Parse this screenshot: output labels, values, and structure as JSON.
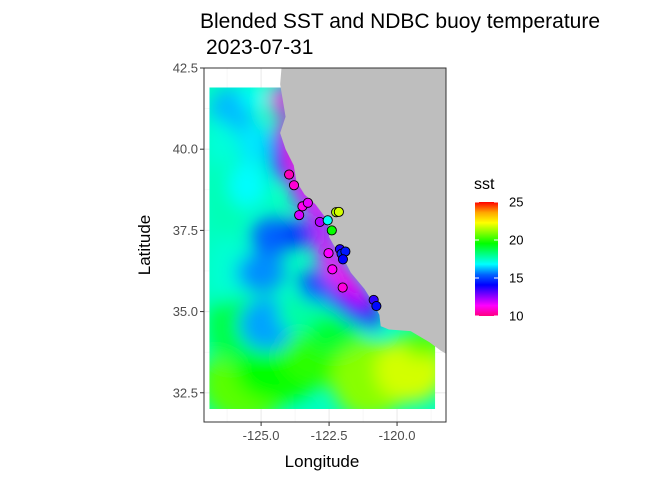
{
  "chart_data": {
    "type": "heatmap",
    "title": "Blended SST and NDBC buoy temperature",
    "subtitle": "2023-07-31",
    "xlabel": "Longitude",
    "ylabel": "Latitude",
    "xlim": [
      -127.1,
      -118.2
    ],
    "ylim": [
      31.6,
      42.5
    ],
    "x_ticks": [
      -125.0,
      -122.5,
      -120.0
    ],
    "x_tick_labels": [
      "-125.0",
      "-122.5",
      "-120.0"
    ],
    "y_ticks": [
      32.5,
      35.0,
      37.5,
      40.0,
      42.5
    ],
    "y_tick_labels": [
      "32.5",
      "35.0",
      "37.5",
      "40.0",
      "42.5"
    ],
    "grid": true,
    "panel_border": true,
    "land_color": "#bebebe",
    "legend": {
      "title": "sst",
      "position": "right",
      "range": [
        10,
        25
      ],
      "ticks": [
        10,
        15,
        20,
        25
      ],
      "tick_labels": [
        "10",
        "15",
        "20",
        "25"
      ],
      "colors": [
        "#ff0080",
        "#ff00ff",
        "#8000ff",
        "#0000ff",
        "#0066ff",
        "#00ffff",
        "#00ff80",
        "#00ff00",
        "#80ff00",
        "#ffff00",
        "#ffa500",
        "#ff0000"
      ]
    },
    "sst_field_extent": {
      "lon": [
        -126.9,
        -118.6
      ],
      "lat": [
        32.0,
        41.9
      ]
    },
    "coastline": [
      [
        -124.25,
        42.5
      ],
      [
        -124.3,
        42.0
      ],
      [
        -124.2,
        41.5
      ],
      [
        -124.1,
        41.0
      ],
      [
        -124.3,
        40.5
      ],
      [
        -124.1,
        40.0
      ],
      [
        -123.8,
        39.5
      ],
      [
        -123.7,
        39.0
      ],
      [
        -123.4,
        38.6
      ],
      [
        -123.0,
        38.3
      ],
      [
        -122.55,
        37.8
      ],
      [
        -122.5,
        37.3
      ],
      [
        -122.3,
        37.0
      ],
      [
        -121.9,
        36.9
      ],
      [
        -121.95,
        36.6
      ],
      [
        -121.7,
        36.2
      ],
      [
        -121.2,
        35.7
      ],
      [
        -120.9,
        35.3
      ],
      [
        -120.65,
        34.9
      ],
      [
        -120.6,
        34.55
      ],
      [
        -120.3,
        34.45
      ],
      [
        -119.5,
        34.4
      ],
      [
        -118.8,
        34.05
      ],
      [
        -118.4,
        33.8
      ],
      [
        -118.2,
        33.7
      ]
    ],
    "buoys": [
      {
        "lon": -123.97,
        "lat": 39.22,
        "sst": 10.6
      },
      {
        "lon": -123.79,
        "lat": 38.89,
        "sst": 10.9
      },
      {
        "lon": -123.48,
        "lat": 38.24,
        "sst": 11.2
      },
      {
        "lon": -123.28,
        "lat": 38.35,
        "sst": 11.6
      },
      {
        "lon": -123.6,
        "lat": 37.97,
        "sst": 11.8
      },
      {
        "lon": -122.84,
        "lat": 37.76,
        "sst": 12.2
      },
      {
        "lon": -122.55,
        "lat": 37.81,
        "sst": 16.9
      },
      {
        "lon": -122.24,
        "lat": 38.06,
        "sst": 21.5
      },
      {
        "lon": -122.14,
        "lat": 38.07,
        "sst": 21.8
      },
      {
        "lon": -122.4,
        "lat": 37.5,
        "sst": 19.6
      },
      {
        "lon": -122.52,
        "lat": 36.8,
        "sst": 11.4
      },
      {
        "lon": -122.38,
        "lat": 36.3,
        "sst": 11.3
      },
      {
        "lon": -122.1,
        "lat": 36.92,
        "sst": 13.8
      },
      {
        "lon": -122.04,
        "lat": 36.78,
        "sst": 14.6
      },
      {
        "lon": -121.9,
        "lat": 36.85,
        "sst": 14.4
      },
      {
        "lon": -121.99,
        "lat": 36.61,
        "sst": 14.1
      },
      {
        "lon": -122.0,
        "lat": 35.74,
        "sst": 11.0
      },
      {
        "lon": -120.86,
        "lat": 35.36,
        "sst": 13.6
      },
      {
        "lon": -120.76,
        "lat": 35.17,
        "sst": 14.2
      }
    ]
  }
}
